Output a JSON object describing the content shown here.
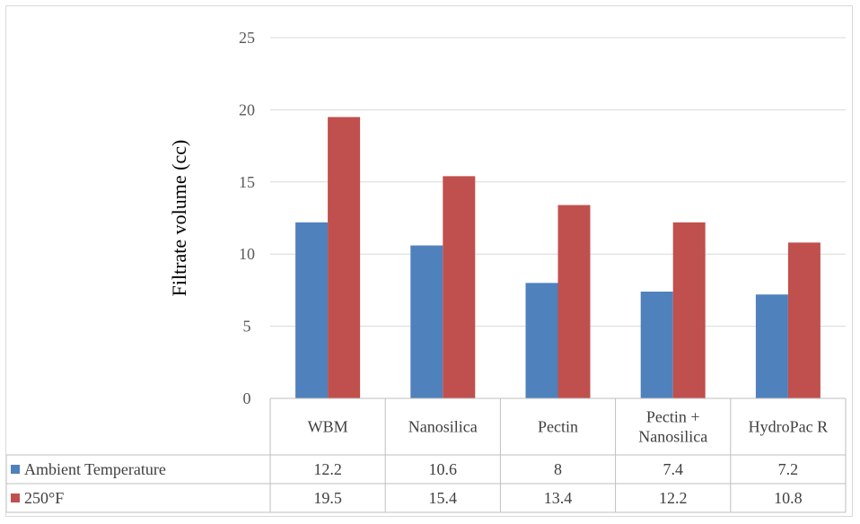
{
  "chart_data": {
    "type": "bar",
    "categories": [
      "WBM",
      "Nanosilica",
      "Pectin",
      "Pectin + Nanosilica",
      "HydroPac R"
    ],
    "category_lines": [
      [
        "WBM"
      ],
      [
        "Nanosilica"
      ],
      [
        "Pectin"
      ],
      [
        "Pectin +",
        "Nanosilica"
      ],
      [
        "HydroPac R"
      ]
    ],
    "series": [
      {
        "name": "Ambient Temperature",
        "color": "#4f81bd",
        "values": [
          12.2,
          10.6,
          8,
          7.4,
          7.2
        ]
      },
      {
        "name": "250°F",
        "color": "#c0504d",
        "values": [
          19.5,
          15.4,
          13.4,
          12.2,
          10.8
        ]
      }
    ],
    "title": "",
    "xlabel": "",
    "ylabel": "Filtrate volume (cc)",
    "ylim": [
      0,
      25
    ],
    "yticks": [
      0,
      5,
      10,
      15,
      20,
      25
    ],
    "grid": true,
    "legend": "data-table"
  }
}
